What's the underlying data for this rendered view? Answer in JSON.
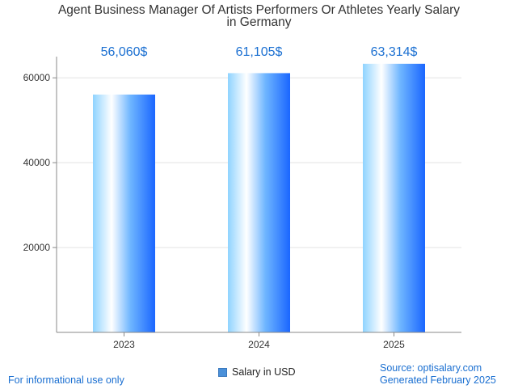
{
  "chart_data": {
    "type": "bar",
    "title_lines": [
      "Agent Business Manager Of Artists Performers Or Athletes Yearly Salary",
      "in Germany"
    ],
    "categories": [
      "2023",
      "2024",
      "2025"
    ],
    "series": [
      {
        "name": "Salary in USD",
        "values": [
          56060,
          61105,
          63314
        ]
      }
    ],
    "data_labels": [
      "56,060$",
      "61,105$",
      "63,314$"
    ],
    "y_ticks": [
      20000,
      40000,
      60000
    ],
    "ylim": [
      0,
      65000
    ],
    "grid": true,
    "legend_position": "bottom",
    "colors": {
      "bar_light": "#ffffff",
      "bar_mid": "#8fd3ff",
      "bar_dark": "#1a66ff",
      "label": "#1a6fd1"
    }
  },
  "footer": {
    "disclaimer": "For informational use only",
    "source": "Source: optisalary.com",
    "generated": "Generated February 2025"
  }
}
